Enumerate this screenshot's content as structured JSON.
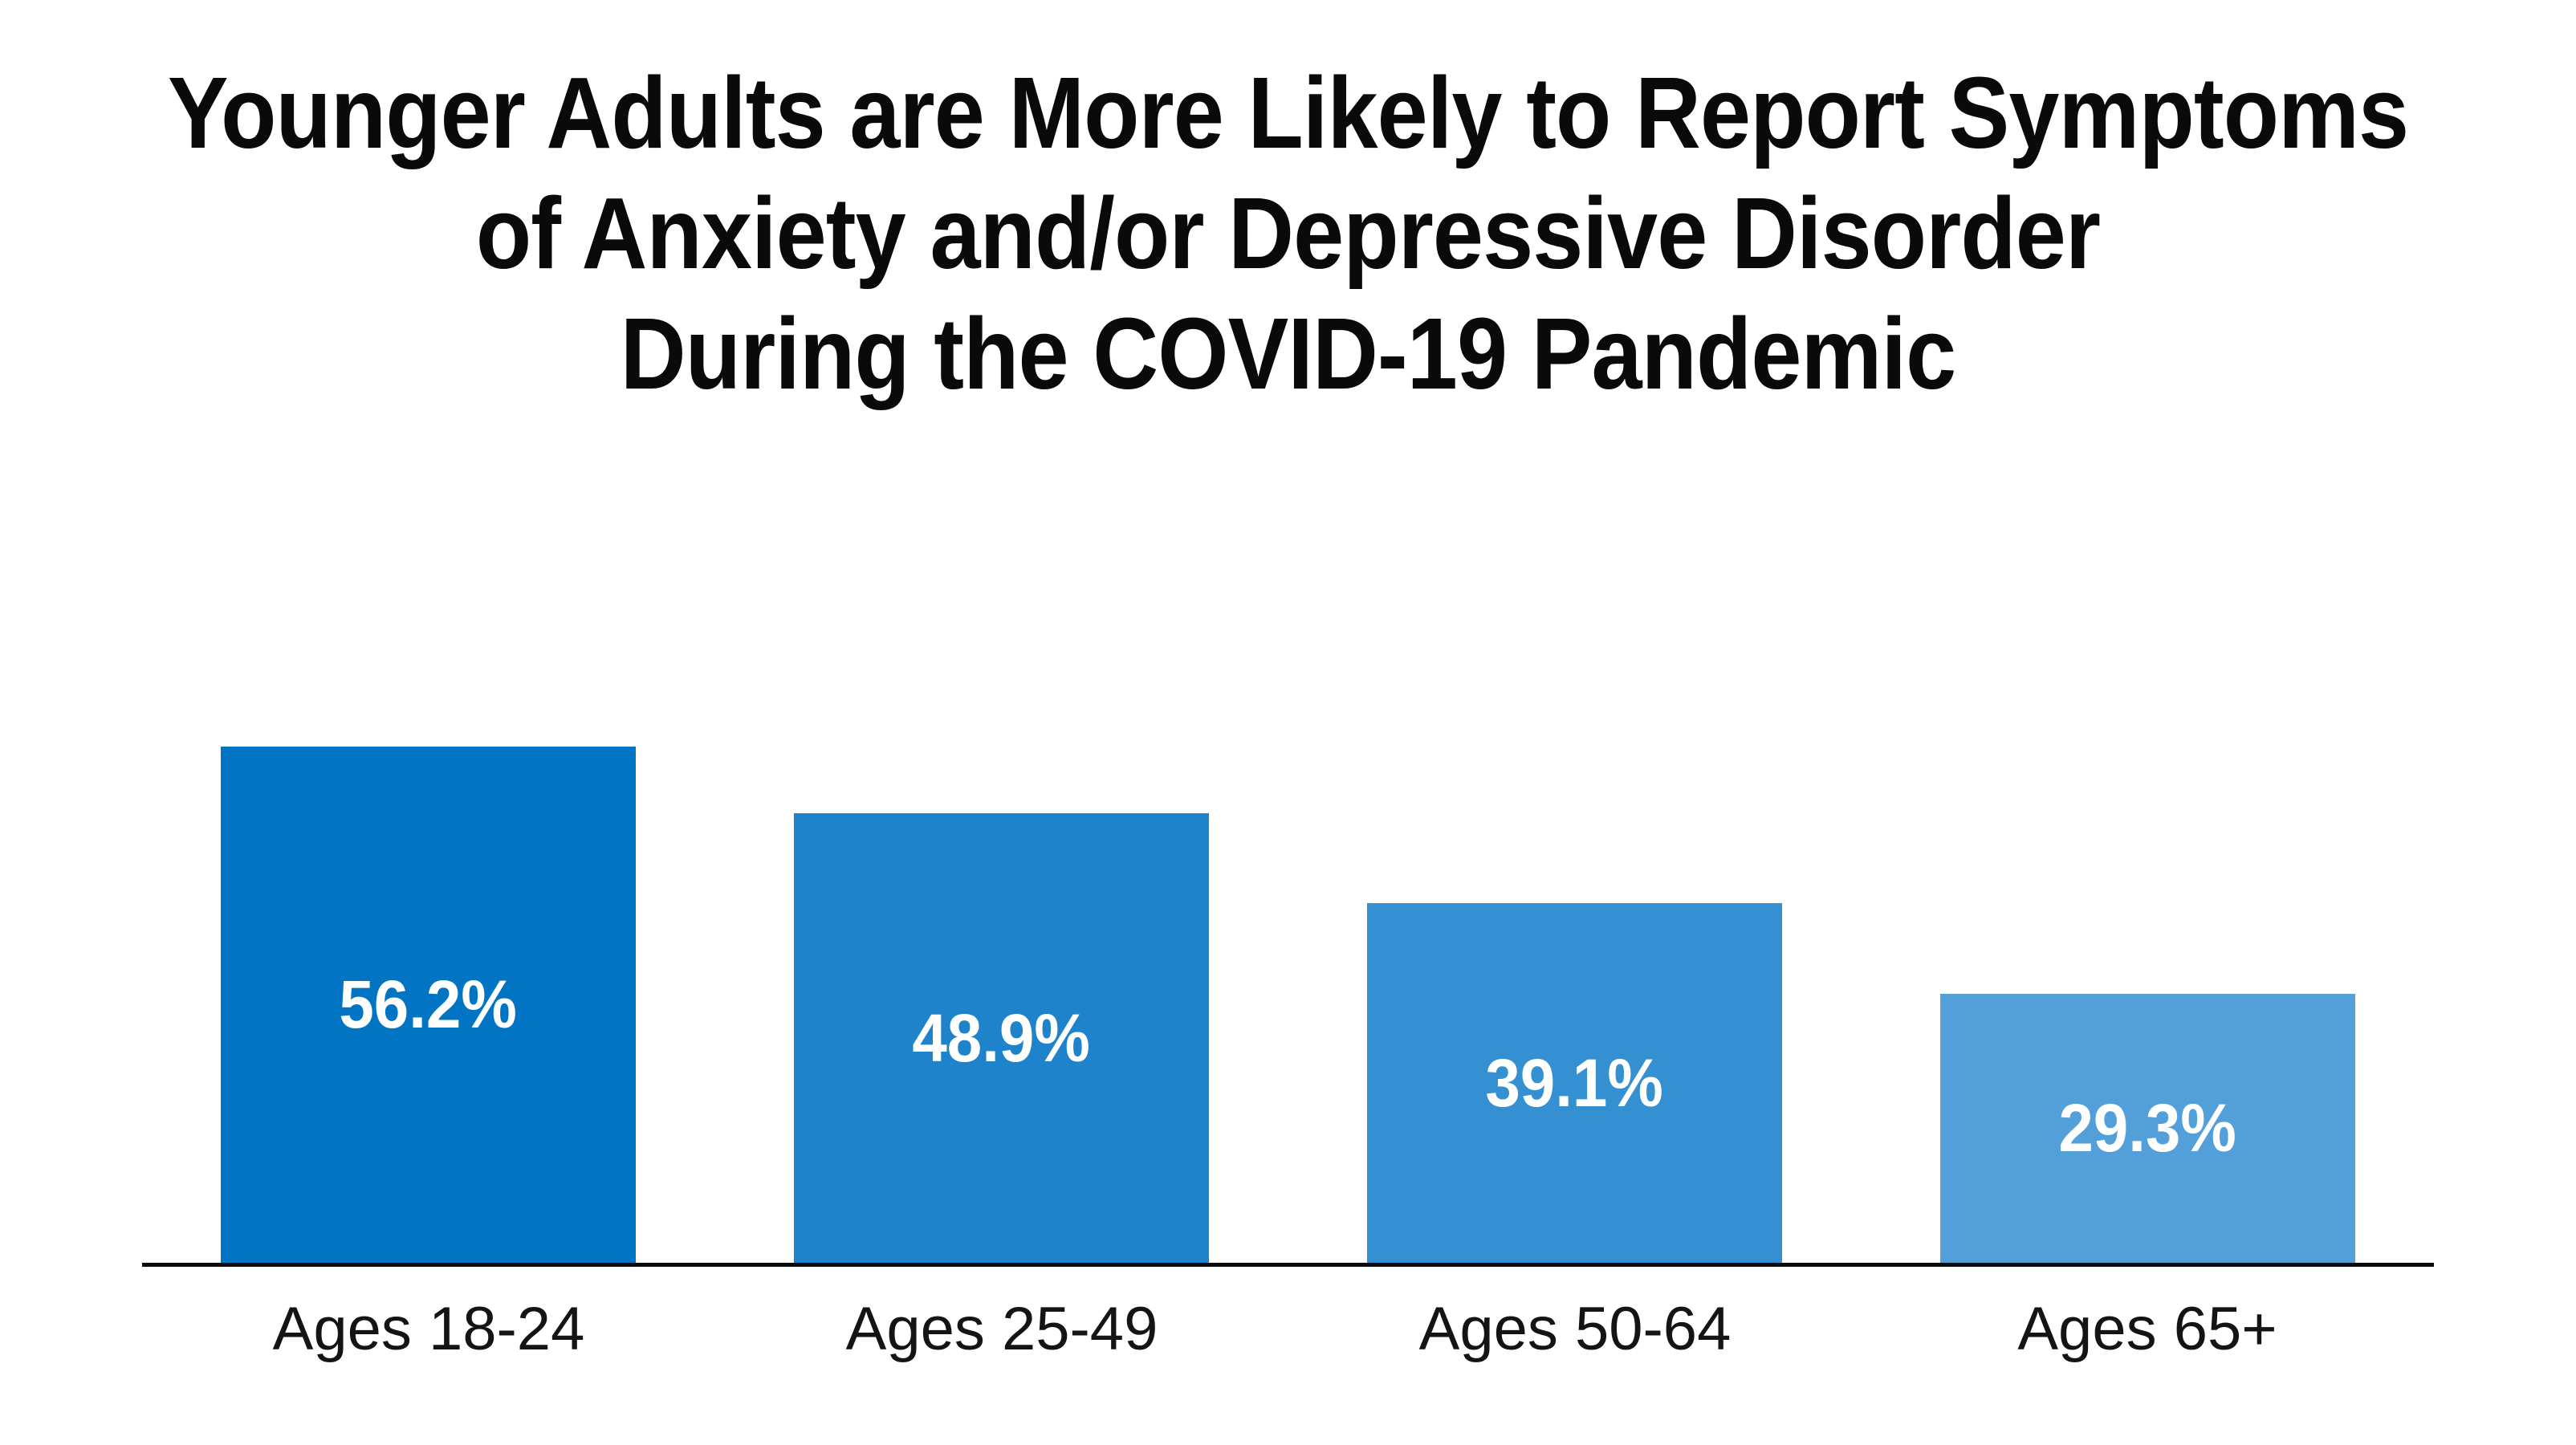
{
  "chart_data": {
    "type": "bar",
    "title": "Younger Adults are More Likely to Report Symptoms of Anxiety and/or Depressive Disorder During the COVID-19 Pandemic",
    "title_lines": [
      "Younger Adults are More Likely to Report Symptoms",
      "of Anxiety and/or Depressive Disorder",
      "During the COVID-19 Pandemic"
    ],
    "categories": [
      "Ages 18-24",
      "Ages 25-49",
      "Ages 50-64",
      "Ages 65+"
    ],
    "values": [
      56.2,
      48.9,
      39.1,
      29.3
    ],
    "value_labels": [
      "56.2%",
      "48.9%",
      "39.1%",
      "29.3%"
    ],
    "xlabel": "",
    "ylabel": "",
    "ylim": [
      0,
      60
    ],
    "grid": false,
    "legend": false,
    "y_axis_shown": false,
    "data_label_position": "inside-center",
    "bar_colors": [
      "#0274c4",
      "#1e83cb",
      "#3590d2",
      "#529fd9"
    ],
    "data_label_color": "#ffffff",
    "axis_line_color": "#0b0b0b",
    "title_color": "#0a0a0b",
    "tick_label_color": "#141414",
    "background_color": "#ffffff"
  }
}
